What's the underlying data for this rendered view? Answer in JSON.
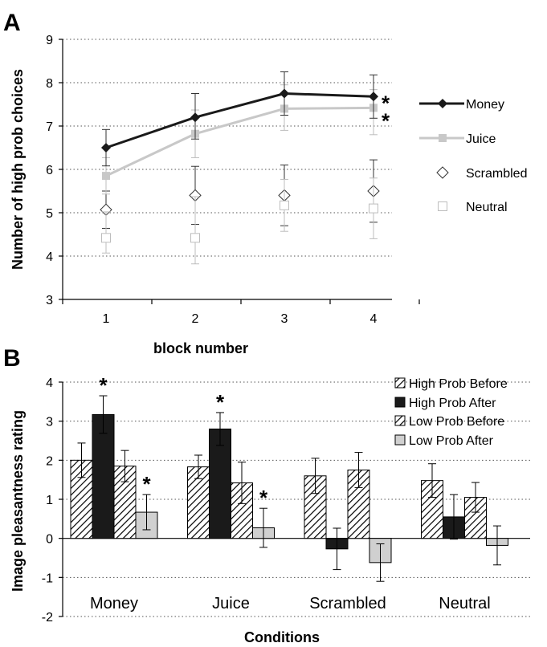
{
  "chart_data": [
    {
      "panel": "A",
      "type": "line",
      "xlabel": "block number",
      "ylabel": "Number of high prob choices",
      "ylim": [
        3,
        9
      ],
      "yticks": [
        3,
        4,
        5,
        6,
        7,
        8,
        9
      ],
      "x": [
        1,
        2,
        3,
        4
      ],
      "grid": true,
      "legend": "right",
      "series": [
        {
          "name": "Money",
          "values": [
            6.5,
            7.2,
            7.75,
            7.68
          ],
          "err_up": [
            0.42,
            0.55,
            0.5,
            0.5
          ],
          "err_down": [
            0.42,
            0.5,
            0.5,
            0.5
          ],
          "color": "#1a1a1a",
          "marker": "diamond-filled",
          "line": true
        },
        {
          "name": "Juice",
          "values": [
            5.85,
            6.82,
            7.4,
            7.42
          ],
          "err_up": [
            0.42,
            0.55,
            0.55,
            0.42
          ],
          "err_down": [
            0.42,
            0.55,
            0.5,
            0.62
          ],
          "color": "#c8c8c8",
          "marker": "square-filled",
          "line": true
        },
        {
          "name": "Scrambled",
          "values": [
            5.07,
            5.4,
            5.4,
            5.5
          ],
          "err_up": [
            0.43,
            0.67,
            0.7,
            0.72
          ],
          "err_down": [
            0.43,
            0.67,
            0.7,
            0.72
          ],
          "color": "#1a1a1a",
          "marker": "diamond-open",
          "line": false
        },
        {
          "name": "Neutral",
          "values": [
            4.42,
            4.42,
            5.17,
            5.1
          ],
          "err_up": [
            0.6,
            0.95,
            0.6,
            0.7
          ],
          "err_down": [
            0.35,
            0.6,
            0.6,
            0.7
          ],
          "color": "#c8c8c8",
          "marker": "square-open",
          "line": false
        }
      ],
      "annotations": [
        "*",
        "*"
      ]
    },
    {
      "panel": "B",
      "type": "bar",
      "xlabel": "Conditions",
      "ylabel": "Image pleasantness rating",
      "ylim": [
        -2,
        4
      ],
      "yticks": [
        -2,
        -1,
        0,
        1,
        2,
        3,
        4
      ],
      "categories": [
        "Money",
        "Juice",
        "Scrambled",
        "Neutral"
      ],
      "grid": true,
      "legend": "top-right",
      "series": [
        {
          "name": "High Prob Before",
          "values": [
            2.0,
            1.83,
            1.6,
            1.48
          ],
          "err": [
            0.44,
            0.3,
            0.45,
            0.43
          ],
          "fill": "hatch"
        },
        {
          "name": "High Prob After",
          "values": [
            3.17,
            2.8,
            -0.27,
            0.55
          ],
          "err": [
            0.48,
            0.42,
            0.53,
            0.57
          ],
          "fill": "#1a1a1a"
        },
        {
          "name": "Low Prob Before",
          "values": [
            1.85,
            1.42,
            1.75,
            1.05
          ],
          "err": [
            0.4,
            0.53,
            0.45,
            0.38
          ],
          "fill": "hatch"
        },
        {
          "name": "Low Prob After",
          "values": [
            0.67,
            0.27,
            -0.62,
            -0.18
          ],
          "err": [
            0.45,
            0.5,
            0.48,
            0.5
          ],
          "fill": "#d0d0d0"
        }
      ],
      "annotations": [
        "*",
        "*",
        "*",
        "*"
      ]
    }
  ]
}
